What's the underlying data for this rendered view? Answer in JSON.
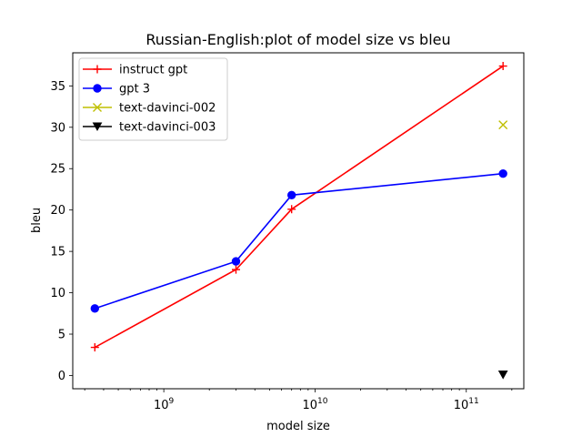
{
  "chart_data": {
    "type": "line",
    "title": "Russian-English:plot of model size vs bleu",
    "xlabel": "model size",
    "ylabel": "bleu",
    "xscale": "log",
    "xlim": [
      250000000.0,
      240000000000.0
    ],
    "ylim": [
      -1.6,
      39.0
    ],
    "grid": false,
    "legend_position": "top-left",
    "x_ticks": [
      {
        "value": 1000000000.0,
        "base": "10",
        "exp": "9"
      },
      {
        "value": 10000000000.0,
        "base": "10",
        "exp": "10"
      },
      {
        "value": 100000000000.0,
        "base": "10",
        "exp": "11"
      }
    ],
    "y_ticks": [
      0,
      5,
      10,
      15,
      20,
      25,
      30,
      35
    ],
    "series": [
      {
        "name": "instruct gpt",
        "color": "#ff0000",
        "marker": "plus",
        "line": true,
        "x": [
          350000000.0,
          3000000000.0,
          7000000000.0,
          175000000000.0
        ],
        "y": [
          3.4,
          12.8,
          20.1,
          37.4
        ]
      },
      {
        "name": "gpt 3",
        "color": "#0000ff",
        "marker": "circle",
        "line": true,
        "x": [
          350000000.0,
          3000000000.0,
          7000000000.0,
          175000000000.0
        ],
        "y": [
          8.1,
          13.8,
          21.8,
          24.4
        ]
      },
      {
        "name": "text-davinci-002",
        "color": "#bfbf00",
        "marker": "x",
        "line": false,
        "x": [
          175000000000.0
        ],
        "y": [
          30.3
        ]
      },
      {
        "name": "text-davinci-003",
        "color": "#000000",
        "marker": "triangle-down",
        "line": false,
        "x": [
          175000000000.0
        ],
        "y": [
          0.1
        ]
      }
    ]
  }
}
